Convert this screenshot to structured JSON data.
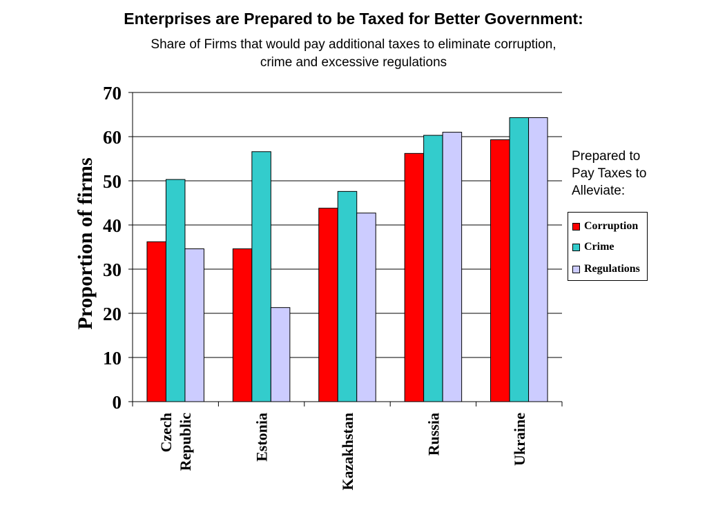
{
  "header": {
    "title": "Enterprises are Prepared to be Taxed for Better Government:",
    "subtitle_line1": "Share of Firms that would pay additional taxes to eliminate corruption,",
    "subtitle_line2": "crime and excessive regulations"
  },
  "legend": {
    "note_line1": "Prepared to",
    "note_line2": "Pay Taxes to",
    "note_line3": "Alleviate:",
    "placement": "right"
  },
  "colors": {
    "Corruption": "#ff0000",
    "Crime": "#33cccc",
    "Regulations": "#ccccff"
  },
  "chart_data": {
    "type": "bar",
    "categories": [
      [
        "Czech",
        "Republic"
      ],
      [
        "Estonia"
      ],
      [
        "Kazakhstan"
      ],
      [
        "Russia"
      ],
      [
        "Ukraine"
      ]
    ],
    "series": [
      {
        "name": "Corruption",
        "values": [
          36.2,
          34.6,
          43.8,
          56.2,
          59.3
        ]
      },
      {
        "name": "Crime",
        "values": [
          50.3,
          56.6,
          47.6,
          60.3,
          64.3
        ]
      },
      {
        "name": "Regulations",
        "values": [
          34.6,
          21.3,
          42.7,
          61.0,
          64.3
        ]
      }
    ],
    "ylabel": "Proportion of firms",
    "yticks": [
      0,
      10,
      20,
      30,
      40,
      50,
      60,
      70
    ],
    "ylim": [
      0,
      70
    ],
    "grid": true
  }
}
